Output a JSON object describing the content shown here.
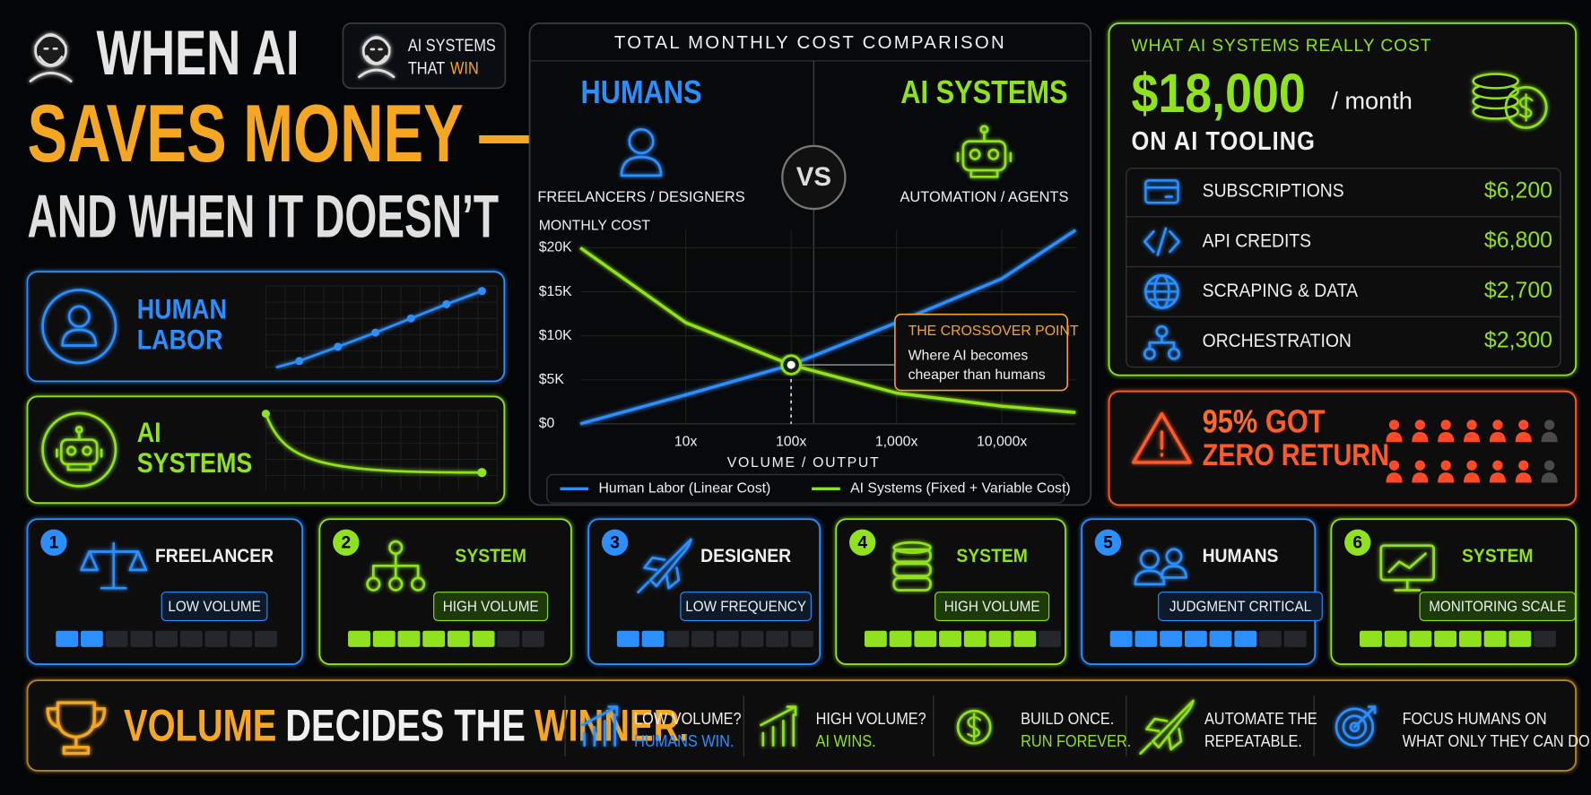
{
  "title": {
    "line1": "WHEN AI",
    "line2": "SAVES MONEY —",
    "line3": "AND WHEN IT DOESN’T"
  },
  "badge": {
    "line1": "AI SYSTEMS",
    "line2a": "THAT",
    "line2b": "WIN"
  },
  "panels": [
    {
      "label_lines": [
        "HUMAN",
        "LABOR"
      ]
    },
    {
      "label_lines": [
        "AI",
        "SYSTEMS"
      ]
    }
  ],
  "chart_data": {
    "type": "line",
    "title": "TOTAL MONTHLY COST COMPARISON",
    "groups": [
      {
        "name": "HUMANS",
        "caption": "FREELANCERS / DESIGNERS"
      },
      {
        "name": "AI SYSTEMS",
        "caption": "AUTOMATION / AGENTS"
      }
    ],
    "vs": "VS",
    "y_label": "MONTHLY COST",
    "x_label": "VOLUME / OUTPUT",
    "x": [
      1,
      10,
      100,
      1000,
      10000,
      50000
    ],
    "log_x": true,
    "xlim": [
      1,
      50000
    ],
    "xticks": [
      {
        "value": 10,
        "label": "10x"
      },
      {
        "value": 100,
        "label": "100x"
      },
      {
        "value": 1000,
        "label": "1,000x"
      },
      {
        "value": 10000,
        "label": "10,000x"
      }
    ],
    "ylim": [
      0,
      22000
    ],
    "yticks": [
      {
        "value": 0,
        "label": "$0"
      },
      {
        "value": 5000,
        "label": "$5K"
      },
      {
        "value": 10000,
        "label": "$10K"
      },
      {
        "value": 15000,
        "label": "$15K"
      },
      {
        "value": 20000,
        "label": "$20K"
      }
    ],
    "grid": true,
    "series": [
      {
        "name": "Human Labor (Linear Cost)",
        "color": "#2b8fff",
        "values": [
          0,
          3300,
          6700,
          11500,
          16500,
          22000
        ]
      },
      {
        "name": "AI Systems (Fixed + Variable Cost)",
        "color": "#8fe21d",
        "values": [
          20000,
          11500,
          6700,
          3500,
          2000,
          1300
        ]
      }
    ],
    "annotation": {
      "title": "THE CROSSOVER POINT",
      "text_lines": [
        "Where AI becomes",
        "cheaper than humans"
      ]
    }
  },
  "cost": {
    "heading": "WHAT AI SYSTEMS REALLY COST",
    "amount": "$18,000",
    "per": "/ month",
    "subheading": "ON AI TOOLING",
    "items": [
      {
        "name": "SUBSCRIPTIONS",
        "amount": "$6,200"
      },
      {
        "name": "API CREDITS",
        "amount": "$6,800"
      },
      {
        "name": "SCRAPING & DATA",
        "amount": "$2,700"
      },
      {
        "name": "ORCHESTRATION",
        "amount": "$2,300"
      }
    ]
  },
  "alert": {
    "line1a": "95%",
    "line1b": "GOT",
    "line2": "ZERO RETURN"
  },
  "cards": [
    {
      "number": 1,
      "title": "FREELANCER",
      "tag": "LOW VOLUME",
      "theme": "blue",
      "meter": {
        "filled": 2,
        "total": 9
      }
    },
    {
      "number": 2,
      "title": "SYSTEM",
      "tag": "HIGH VOLUME",
      "theme": "green",
      "meter": {
        "filled": 6,
        "total": 8
      }
    },
    {
      "number": 3,
      "title": "DESIGNER",
      "tag": "LOW FREQUENCY",
      "theme": "blue",
      "meter": {
        "filled": 2,
        "total": 8
      }
    },
    {
      "number": 4,
      "title": "SYSTEM",
      "tag": "HIGH VOLUME",
      "theme": "green",
      "meter": {
        "filled": 7,
        "total": 8
      }
    },
    {
      "number": 5,
      "title": "HUMANS",
      "tag": "JUDGMENT CRITICAL",
      "theme": "blue",
      "meter": {
        "filled": 6,
        "total": 8
      }
    },
    {
      "number": 6,
      "title": "SYSTEM",
      "tag": "MONITORING SCALE",
      "theme": "green",
      "meter": {
        "filled": 7,
        "total": 8
      }
    }
  ],
  "footer": {
    "headline": [
      "VOLUME",
      "DECIDES THE",
      "WINNER."
    ],
    "tips": [
      {
        "line1": "LOW VOLUME?",
        "line2": "HUMANS WIN.",
        "accent": "blue"
      },
      {
        "line1": "HIGH VOLUME?",
        "line2": "AI WINS.",
        "accent": "green"
      },
      {
        "line1": "BUILD ONCE.",
        "line2": "RUN FOREVER.",
        "accent": "green"
      },
      {
        "line1": "AUTOMATE THE",
        "line2": "REPEATABLE.",
        "accent": "white"
      },
      {
        "line1": "FOCUS HUMANS ON",
        "line2": "WHAT ONLY THEY CAN DO.",
        "accent": "white"
      }
    ]
  }
}
